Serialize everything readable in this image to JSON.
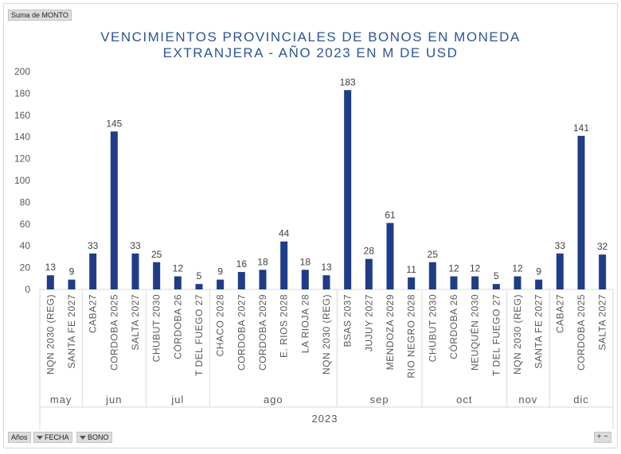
{
  "pivot": {
    "value_field": "Suma de MONTO",
    "row_label": "Años",
    "field_fecha": "FECHA",
    "field_bono": "BONO",
    "zoom_label": "+ −"
  },
  "colors": {
    "bar": "#1f3c88",
    "title": "#2e5597"
  },
  "chart_data": {
    "type": "bar",
    "title_line1": "VENCIMIENTOS PROVINCIALES DE BONOS EN MONEDA",
    "title_line2": "EXTRANJERA - AÑO 2023 EN M DE USD",
    "xlabel": "",
    "ylabel": "",
    "ylim": [
      0,
      200
    ],
    "yticks": [
      0,
      20,
      40,
      60,
      80,
      100,
      120,
      140,
      160,
      180,
      200
    ],
    "grid": false,
    "legend": "none",
    "year": "2023",
    "categories": [
      "NQN 2030 (REG)",
      "SANTA FE 2027",
      "CABA27",
      "CORDOBA 2025",
      "SALTA 2027",
      "CHUBUT 2030",
      "CÓRDOBA 26",
      "T DEL FUEGO 27",
      "CHACO 2028",
      "CORDOBA 2027",
      "CORDOBA 2029",
      "E. RIOS 2028",
      "LA RIOJA 28",
      "NQN 2030 (REG)",
      "BSAS 2037",
      "JUJUY 2027",
      "MENDOZA 2029",
      "RIO NEGRO 2028",
      "CHUBUT 2030",
      "CÓRDOBA 26",
      "NEUQUÉN 2030",
      "T DEL FUEGO 27",
      "NQN 2030 (REG)",
      "SANTA FE 2027",
      "CABA27",
      "CORDOBA 2025",
      "SALTA 2027"
    ],
    "values": [
      13,
      9,
      33,
      145,
      33,
      25,
      12,
      5,
      9,
      16,
      18,
      44,
      18,
      13,
      183,
      28,
      61,
      11,
      25,
      12,
      12,
      5,
      12,
      9,
      33,
      141,
      32
    ],
    "groups": [
      {
        "label": "may",
        "count": 2
      },
      {
        "label": "jun",
        "count": 3
      },
      {
        "label": "jul",
        "count": 3
      },
      {
        "label": "ago",
        "count": 6
      },
      {
        "label": "sep",
        "count": 4
      },
      {
        "label": "oct",
        "count": 4
      },
      {
        "label": "nov",
        "count": 2
      },
      {
        "label": "dic",
        "count": 3
      }
    ]
  }
}
